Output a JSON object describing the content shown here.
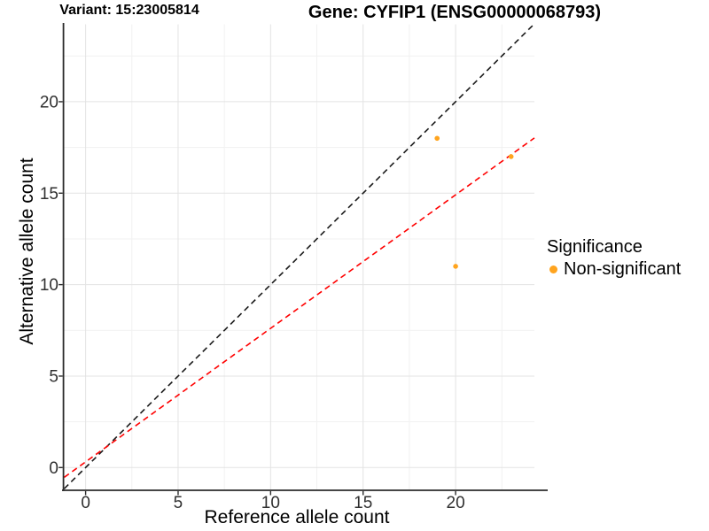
{
  "chart_data": {
    "type": "scatter",
    "titles": {
      "variant": "Variant: 15:23005814",
      "gene": "Gene: CYFIP1 (ENSG00000068793)"
    },
    "xlabel": "Reference allele count",
    "ylabel": "Alternative allele count",
    "xlim": [
      -1.155,
      24.26
    ],
    "ylim": [
      -1.195,
      24.23
    ],
    "x_ticks": [
      0,
      5,
      10,
      15,
      20
    ],
    "y_ticks": [
      0,
      5,
      10,
      15,
      20
    ],
    "minor_step": 2.5,
    "grid": true,
    "background": "#FFFFFF",
    "points": [
      {
        "x": 19,
        "y": 18
      },
      {
        "x": 20,
        "y": 11
      },
      {
        "x": 23,
        "y": 17
      }
    ],
    "point_color": "#FFA41E",
    "reference_lines": [
      {
        "name": "identity-line",
        "slope": 1,
        "intercept": 0,
        "color": "#1A1A1A",
        "style": "dashed"
      },
      {
        "name": "expected-ratio-line",
        "slope": 0.73,
        "intercept": 0.31,
        "color": "#FF0000",
        "style": "dashed"
      }
    ],
    "legend": {
      "position": "right",
      "title": "Significance",
      "items": [
        {
          "label": "Non-significant",
          "color": "#FFA41E"
        }
      ]
    }
  }
}
